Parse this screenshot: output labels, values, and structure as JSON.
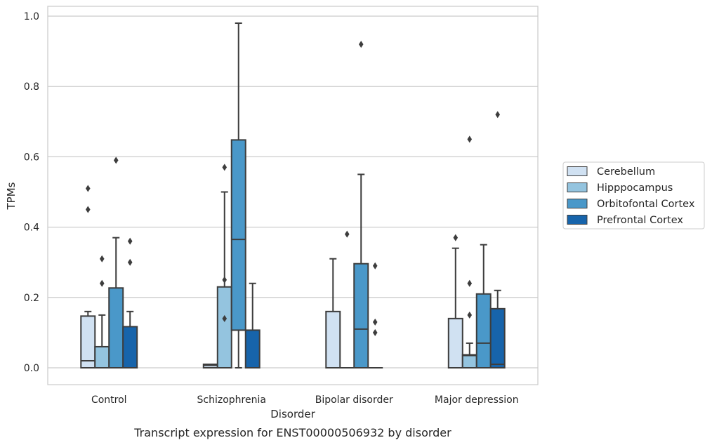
{
  "chart_data": {
    "type": "boxplot",
    "caption": "Transcript expression for ENST00000506932 by disorder",
    "xlabel": "Disorder",
    "ylabel": "TPMs",
    "ylim": [
      -0.045,
      1.03
    ],
    "yticks": [
      "0.0",
      "0.2",
      "0.4",
      "0.6",
      "0.8",
      "1.0"
    ],
    "grid": "horizontal",
    "legend_position": "right",
    "categories": [
      "Control",
      "Schizophrenia",
      "Bipolar disorder",
      "Major depression"
    ],
    "series": [
      {
        "name": "Cerebellum",
        "color": "#d0e1f2",
        "boxes": [
          {
            "whislo": 0.0,
            "q1": 0.0,
            "med": 0.02,
            "q3": 0.147,
            "whishi": 0.16,
            "fliers": [
              0.45,
              0.51
            ]
          },
          {
            "whislo": 0.0,
            "q1": 0.0,
            "med": 0.007,
            "q3": 0.01,
            "whishi": 0.01,
            "fliers": []
          },
          {
            "whislo": 0.0,
            "q1": 0.0,
            "med": 0.0,
            "q3": 0.16,
            "whishi": 0.31,
            "fliers": []
          },
          {
            "whislo": 0.0,
            "q1": 0.0,
            "med": 0.0,
            "q3": 0.14,
            "whishi": 0.34,
            "fliers": [
              0.37
            ]
          }
        ]
      },
      {
        "name": "Hipppocampus",
        "color": "#94c4df",
        "boxes": [
          {
            "whislo": 0.0,
            "q1": 0.0,
            "med": 0.06,
            "q3": 0.06,
            "whishi": 0.15,
            "fliers": [
              0.24,
              0.31
            ]
          },
          {
            "whislo": 0.0,
            "q1": 0.0,
            "med": 0.0,
            "q3": 0.23,
            "whishi": 0.5,
            "fliers": [
              0.14,
              0.25,
              0.57
            ]
          },
          {
            "whislo": 0.0,
            "q1": 0.0,
            "med": 0.0,
            "q3": 0.0,
            "whishi": 0.0,
            "fliers": [
              0.38
            ]
          },
          {
            "whislo": 0.0,
            "q1": 0.0,
            "med": 0.035,
            "q3": 0.037,
            "whishi": 0.07,
            "fliers": [
              0.15,
              0.24,
              0.65
            ]
          }
        ]
      },
      {
        "name": "Orbitofontal Cortex",
        "color": "#4a98c9",
        "boxes": [
          {
            "whislo": 0.0,
            "q1": 0.0,
            "med": 0.0,
            "q3": 0.227,
            "whishi": 0.37,
            "fliers": [
              0.59
            ]
          },
          {
            "whislo": 0.0,
            "q1": 0.107,
            "med": 0.365,
            "q3": 0.648,
            "whishi": 0.98,
            "fliers": []
          },
          {
            "whislo": 0.0,
            "q1": 0.0,
            "med": 0.11,
            "q3": 0.296,
            "whishi": 0.55,
            "fliers": [
              0.92
            ]
          },
          {
            "whislo": 0.0,
            "q1": 0.0,
            "med": 0.07,
            "q3": 0.21,
            "whishi": 0.35,
            "fliers": []
          }
        ]
      },
      {
        "name": "Prefrontal Cortex",
        "color": "#1764ab",
        "boxes": [
          {
            "whislo": 0.0,
            "q1": 0.0,
            "med": 0.0,
            "q3": 0.117,
            "whishi": 0.16,
            "fliers": [
              0.3,
              0.36
            ]
          },
          {
            "whislo": 0.0,
            "q1": 0.0,
            "med": 0.0,
            "q3": 0.107,
            "whishi": 0.24,
            "fliers": []
          },
          {
            "whislo": 0.0,
            "q1": 0.0,
            "med": 0.0,
            "q3": 0.0,
            "whishi": 0.0,
            "fliers": [
              0.1,
              0.13,
              0.29
            ]
          },
          {
            "whislo": 0.0,
            "q1": 0.0,
            "med": 0.01,
            "q3": 0.168,
            "whishi": 0.22,
            "fliers": [
              0.72
            ]
          }
        ]
      }
    ]
  }
}
